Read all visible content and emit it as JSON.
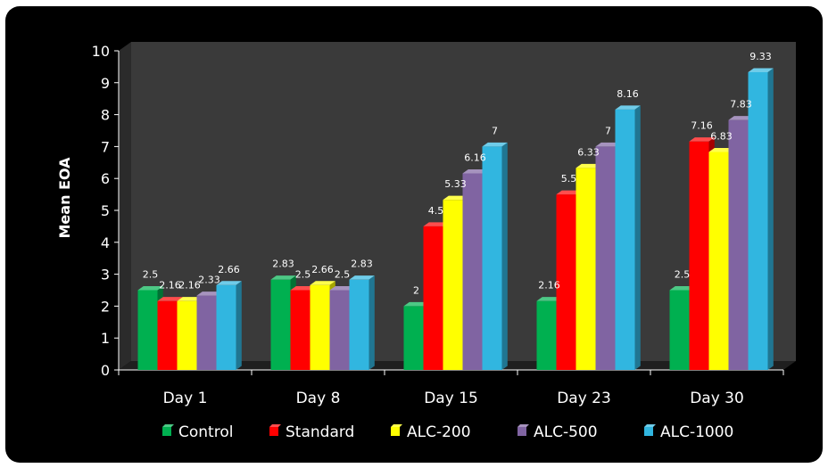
{
  "chart_data": {
    "type": "bar",
    "categories": [
      "Day 1",
      "Day 8",
      "Day 15",
      "Day 23",
      "Day 30"
    ],
    "series": [
      {
        "name": "Control",
        "color": "#00b050",
        "values": [
          2.5,
          2.83,
          2,
          2.16,
          2.5
        ]
      },
      {
        "name": "Standard",
        "color": "#ff0000",
        "values": [
          2.16,
          2.5,
          4.5,
          5.5,
          7.16
        ]
      },
      {
        "name": "ALC-200",
        "color": "#ffff00",
        "values": [
          2.16,
          2.66,
          5.33,
          6.33,
          6.83
        ]
      },
      {
        "name": "ALC-500",
        "color": "#8064a2",
        "values": [
          2.33,
          2.5,
          6.16,
          7,
          7.83
        ]
      },
      {
        "name": "ALC-1000",
        "color": "#31b6e0",
        "values": [
          2.66,
          2.83,
          7,
          8.16,
          9.33
        ]
      }
    ],
    "data_labels": [
      [
        "2.5",
        "2.83",
        "2",
        "2.16",
        "2.5"
      ],
      [
        "2.16",
        "2.5",
        "4.5",
        "5.5",
        "7.16"
      ],
      [
        "2.16",
        "2.66",
        "5.33",
        "6.33",
        "6.83"
      ],
      [
        "2.33",
        "2.5",
        "6.16",
        "7",
        "7.83"
      ],
      [
        "2.66",
        "2.83",
        "7",
        "8.16",
        "9.33"
      ]
    ],
    "ylabel": "Mean  EOA",
    "xlabel": "",
    "ylim": [
      0,
      10
    ],
    "yticks": [
      "0",
      "1",
      "2",
      "3",
      "4",
      "5",
      "6",
      "7",
      "8",
      "9",
      "10"
    ],
    "legend_position": "bottom",
    "grid": false,
    "style": "3d-bar"
  }
}
